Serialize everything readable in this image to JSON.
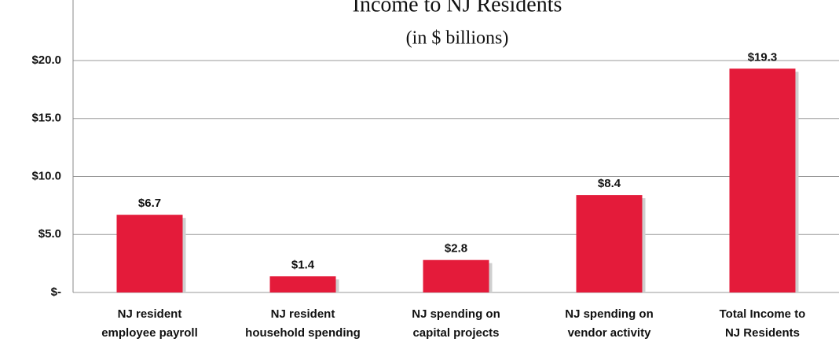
{
  "chart_data": {
    "type": "bar",
    "title": "Income to NJ Residents",
    "subtitle": "(in $ billions)",
    "categories": [
      "NJ resident\nemployee payroll",
      "NJ resident\nhousehold spending",
      "NJ spending on\ncapital projects",
      "NJ spending on\nvendor activity",
      "Total Income to\nNJ Residents"
    ],
    "values": [
      6.7,
      1.4,
      2.8,
      8.4,
      19.3
    ],
    "value_labels": [
      "$6.7",
      "$1.4",
      "$2.8",
      "$8.4",
      "$19.3"
    ],
    "color": "#e41b3a",
    "ylim": [
      0,
      25
    ],
    "yticks": [
      {
        "value": 0,
        "label": "$-"
      },
      {
        "value": 5,
        "label": "$5.0"
      },
      {
        "value": 10,
        "label": "$10.0"
      },
      {
        "value": 15,
        "label": "$15.0"
      },
      {
        "value": 20,
        "label": "$20.0"
      }
    ],
    "grid": true
  }
}
